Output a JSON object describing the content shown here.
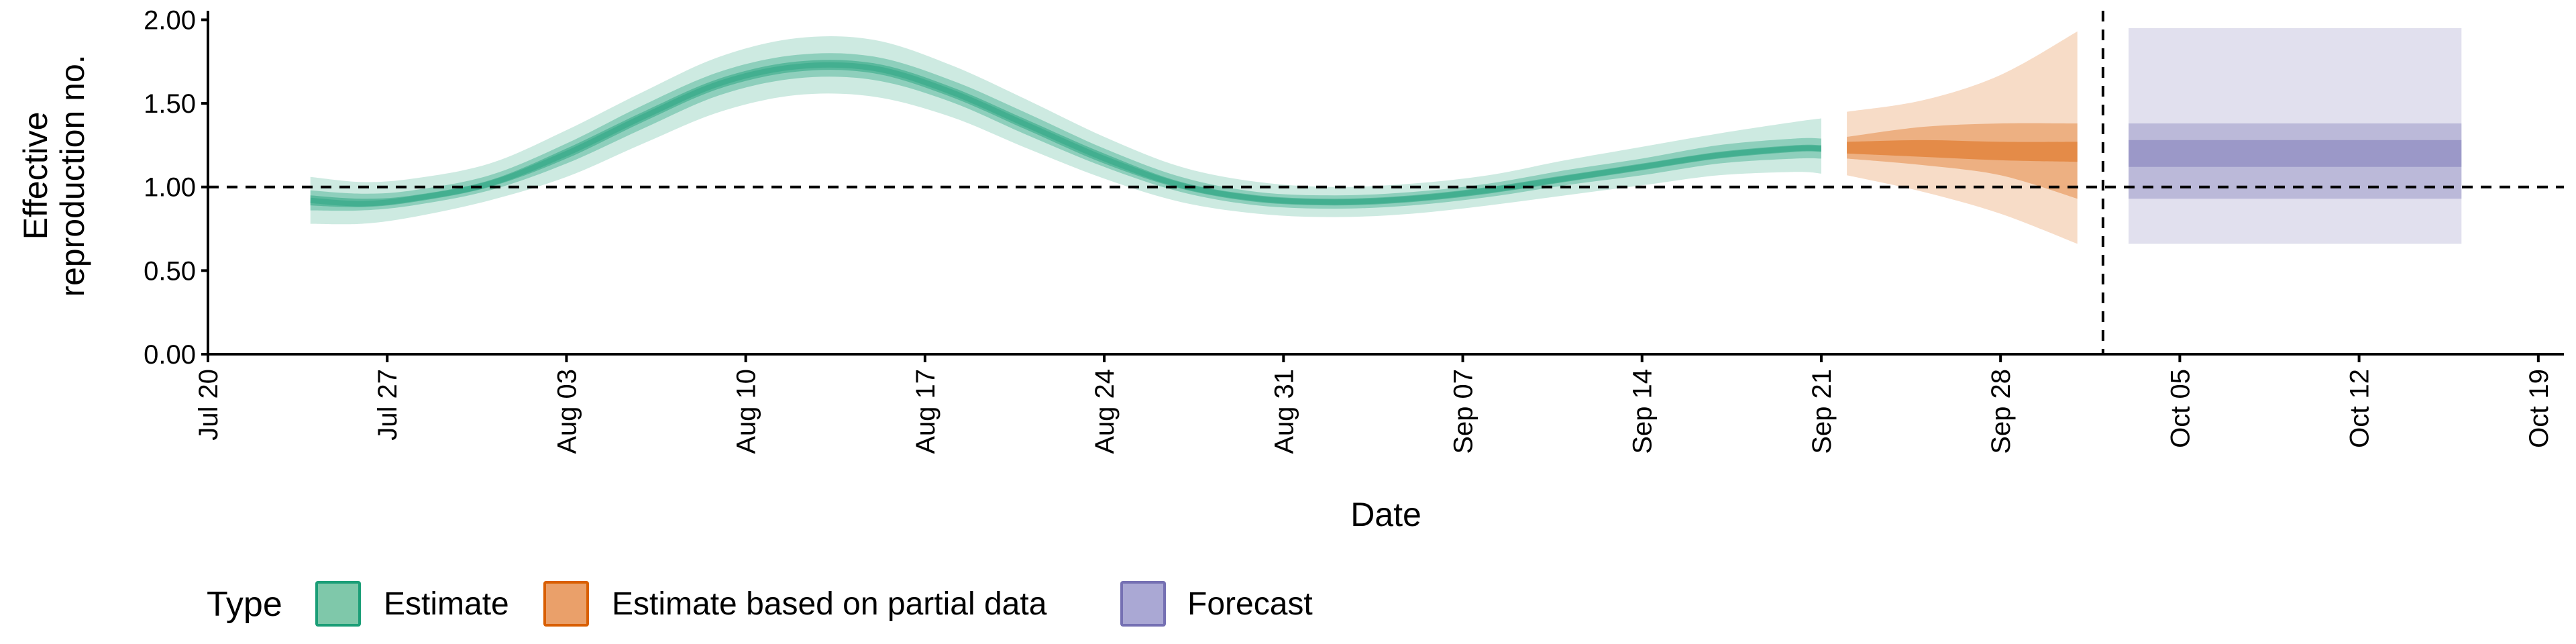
{
  "chart_data": {
    "type": "area",
    "xlabel": "Date",
    "ylabel": [
      "Effective",
      "reproduction no."
    ],
    "x_ticks": [
      "Jul 20",
      "Jul 27",
      "Aug 03",
      "Aug 10",
      "Aug 17",
      "Aug 24",
      "Aug 31",
      "Sep 07",
      "Sep 14",
      "Sep 21",
      "Sep 28",
      "Oct 05",
      "Oct 12",
      "Oct 19"
    ],
    "x_tick_dates": [
      "2020-07-20",
      "2020-07-27",
      "2020-08-03",
      "2020-08-10",
      "2020-08-17",
      "2020-08-24",
      "2020-08-31",
      "2020-09-07",
      "2020-09-14",
      "2020-09-21",
      "2020-09-28",
      "2020-10-05",
      "2020-10-12",
      "2020-10-19"
    ],
    "x_range": [
      "2020-07-20",
      "2020-10-20"
    ],
    "y_ticks": [
      "0.00",
      "0.50",
      "1.00",
      "1.50",
      "2.00"
    ],
    "ylim": [
      0,
      2.03
    ],
    "reference_line_y": 1.0,
    "forecast_divider_date": "2020-10-02",
    "legend": {
      "title": "Type",
      "position": "bottom-left",
      "entries": [
        {
          "label": "Estimate",
          "fill": "#7fc8aa",
          "stroke": "#1b9e77"
        },
        {
          "label": "Estimate based on partial data",
          "fill": "#eaa06a",
          "stroke": "#d95f02"
        },
        {
          "label": "Forecast",
          "fill": "#aaa8d4",
          "stroke": "#7570b3"
        }
      ]
    },
    "series": [
      {
        "type": "Estimate",
        "color": "#1b9e77",
        "points": [
          {
            "date": "2020-07-24",
            "median": 0.92,
            "lower_20": 0.89,
            "upper_20": 0.95,
            "lower_50": 0.86,
            "upper_50": 0.98,
            "lower_90": 0.78,
            "upper_90": 1.06
          },
          {
            "date": "2020-07-26",
            "median": 0.9,
            "lower_20": 0.88,
            "upper_20": 0.93,
            "lower_50": 0.86,
            "upper_50": 0.96,
            "lower_90": 0.78,
            "upper_90": 1.03
          },
          {
            "date": "2020-07-28",
            "median": 0.93,
            "lower_20": 0.91,
            "upper_20": 0.95,
            "lower_50": 0.89,
            "upper_50": 0.98,
            "lower_90": 0.82,
            "upper_90": 1.05
          },
          {
            "date": "2020-07-31",
            "median": 1.02,
            "lower_20": 1.0,
            "upper_20": 1.04,
            "lower_50": 0.98,
            "upper_50": 1.07,
            "lower_90": 0.92,
            "upper_90": 1.14
          },
          {
            "date": "2020-08-03",
            "median": 1.2,
            "lower_20": 1.17,
            "upper_20": 1.23,
            "lower_50": 1.14,
            "upper_50": 1.26,
            "lower_90": 1.06,
            "upper_90": 1.34
          },
          {
            "date": "2020-08-06",
            "median": 1.42,
            "lower_20": 1.39,
            "upper_20": 1.45,
            "lower_50": 1.35,
            "upper_50": 1.49,
            "lower_90": 1.26,
            "upper_90": 1.57
          },
          {
            "date": "2020-08-09",
            "median": 1.62,
            "lower_20": 1.59,
            "upper_20": 1.65,
            "lower_50": 1.55,
            "upper_50": 1.69,
            "lower_90": 1.45,
            "upper_90": 1.78
          },
          {
            "date": "2020-08-12",
            "median": 1.72,
            "lower_20": 1.69,
            "upper_20": 1.75,
            "lower_50": 1.65,
            "upper_50": 1.79,
            "lower_90": 1.55,
            "upper_90": 1.89
          },
          {
            "date": "2020-08-15",
            "median": 1.71,
            "lower_20": 1.68,
            "upper_20": 1.74,
            "lower_50": 1.64,
            "upper_50": 1.78,
            "lower_90": 1.54,
            "upper_90": 1.88
          },
          {
            "date": "2020-08-18",
            "median": 1.57,
            "lower_20": 1.54,
            "upper_20": 1.6,
            "lower_50": 1.51,
            "upper_50": 1.64,
            "lower_90": 1.42,
            "upper_90": 1.73
          },
          {
            "date": "2020-08-21",
            "median": 1.37,
            "lower_20": 1.34,
            "upper_20": 1.4,
            "lower_50": 1.31,
            "upper_50": 1.44,
            "lower_90": 1.23,
            "upper_90": 1.52
          },
          {
            "date": "2020-08-24",
            "median": 1.17,
            "lower_20": 1.14,
            "upper_20": 1.2,
            "lower_50": 1.12,
            "upper_50": 1.23,
            "lower_90": 1.05,
            "upper_90": 1.3
          },
          {
            "date": "2020-08-27",
            "median": 1.01,
            "lower_20": 0.99,
            "upper_20": 1.03,
            "lower_50": 0.97,
            "upper_50": 1.06,
            "lower_90": 0.91,
            "upper_90": 1.12
          },
          {
            "date": "2020-08-30",
            "median": 0.93,
            "lower_20": 0.91,
            "upper_20": 0.95,
            "lower_50": 0.89,
            "upper_50": 0.97,
            "lower_90": 0.84,
            "upper_90": 1.03
          },
          {
            "date": "2020-09-02",
            "median": 0.91,
            "lower_20": 0.89,
            "upper_20": 0.93,
            "lower_50": 0.87,
            "upper_50": 0.95,
            "lower_90": 0.82,
            "upper_90": 1.0
          },
          {
            "date": "2020-09-05",
            "median": 0.93,
            "lower_20": 0.91,
            "upper_20": 0.95,
            "lower_50": 0.89,
            "upper_50": 0.97,
            "lower_90": 0.84,
            "upper_90": 1.02
          },
          {
            "date": "2020-09-08",
            "median": 0.98,
            "lower_20": 0.96,
            "upper_20": 1.0,
            "lower_50": 0.94,
            "upper_50": 1.02,
            "lower_90": 0.89,
            "upper_90": 1.07
          },
          {
            "date": "2020-09-11",
            "median": 1.05,
            "lower_20": 1.03,
            "upper_20": 1.07,
            "lower_50": 1.01,
            "upper_50": 1.1,
            "lower_90": 0.95,
            "upper_90": 1.16
          },
          {
            "date": "2020-09-14",
            "median": 1.12,
            "lower_20": 1.1,
            "upper_20": 1.14,
            "lower_50": 1.07,
            "upper_50": 1.17,
            "lower_90": 1.01,
            "upper_90": 1.24
          },
          {
            "date": "2020-09-17",
            "median": 1.19,
            "lower_20": 1.17,
            "upper_20": 1.21,
            "lower_50": 1.14,
            "upper_50": 1.25,
            "lower_90": 1.07,
            "upper_90": 1.32
          },
          {
            "date": "2020-09-20",
            "median": 1.23,
            "lower_20": 1.21,
            "upper_20": 1.25,
            "lower_50": 1.17,
            "upper_50": 1.29,
            "lower_90": 1.09,
            "upper_90": 1.39
          },
          {
            "date": "2020-09-21",
            "median": 1.23,
            "lower_20": 1.21,
            "upper_20": 1.25,
            "lower_50": 1.17,
            "upper_50": 1.29,
            "lower_90": 1.08,
            "upper_90": 1.41
          }
        ]
      },
      {
        "type": "Estimate based on partial data",
        "color": "#d95f02",
        "points": [
          {
            "date": "2020-09-22",
            "median": 1.23,
            "lower_20": 1.2,
            "upper_20": 1.27,
            "lower_50": 1.17,
            "upper_50": 1.3,
            "lower_90": 1.07,
            "upper_90": 1.45
          },
          {
            "date": "2020-09-25",
            "median": 1.23,
            "lower_20": 1.18,
            "upper_20": 1.28,
            "lower_50": 1.13,
            "upper_50": 1.36,
            "lower_90": 0.97,
            "upper_90": 1.52
          },
          {
            "date": "2020-09-28",
            "median": 1.22,
            "lower_20": 1.16,
            "upper_20": 1.27,
            "lower_50": 1.07,
            "upper_50": 1.38,
            "lower_90": 0.84,
            "upper_90": 1.67
          },
          {
            "date": "2020-10-01",
            "median": 1.21,
            "lower_20": 1.15,
            "upper_20": 1.27,
            "lower_50": 0.93,
            "upper_50": 1.38,
            "lower_90": 0.66,
            "upper_90": 1.93
          }
        ]
      },
      {
        "type": "Forecast",
        "color": "#7570b3",
        "points": [
          {
            "date": "2020-10-03",
            "median": 1.19,
            "lower_20": 1.12,
            "upper_20": 1.28,
            "lower_50": 0.93,
            "upper_50": 1.38,
            "lower_90": 0.66,
            "upper_90": 1.95
          },
          {
            "date": "2020-10-16",
            "median": 1.19,
            "lower_20": 1.12,
            "upper_20": 1.28,
            "lower_50": 0.93,
            "upper_50": 1.38,
            "lower_90": 0.66,
            "upper_90": 1.95
          }
        ]
      }
    ]
  }
}
